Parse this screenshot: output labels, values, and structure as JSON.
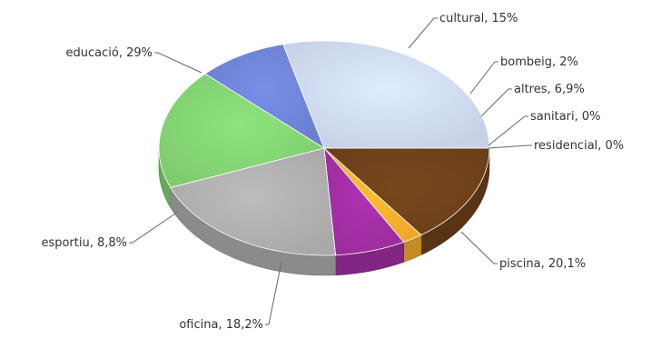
{
  "chart_data": {
    "type": "pie",
    "style": "3d",
    "slices": [
      {
        "name": "cultural",
        "value": 15,
        "label": "cultural, 15%",
        "color": "#6b3f1a"
      },
      {
        "name": "bombeig",
        "value": 2,
        "label": "bombeig, 2%",
        "color": "#f0a92b"
      },
      {
        "name": "altres",
        "value": 6.9,
        "label": "altres, 6,9%",
        "color": "#9c2d9e"
      },
      {
        "name": "sanitari",
        "value": 0,
        "label": "sanitari, 0%",
        "color": "#888888"
      },
      {
        "name": "residencial",
        "value": 0,
        "label": "residencial, 0%",
        "color": "#777777"
      },
      {
        "name": "piscina",
        "value": 20.1,
        "label": "piscina, 20,1%",
        "color": "#a9a9a9"
      },
      {
        "name": "oficina",
        "value": 18.2,
        "label": "oficina, 18,2%",
        "color": "#7fcc70"
      },
      {
        "name": "esportiu",
        "value": 8.8,
        "label": "esportiu, 8,8%",
        "color": "#6b7fcf"
      },
      {
        "name": "educació",
        "value": 29,
        "label": "educació, 29%",
        "color": "#c7d2e6"
      }
    ]
  }
}
